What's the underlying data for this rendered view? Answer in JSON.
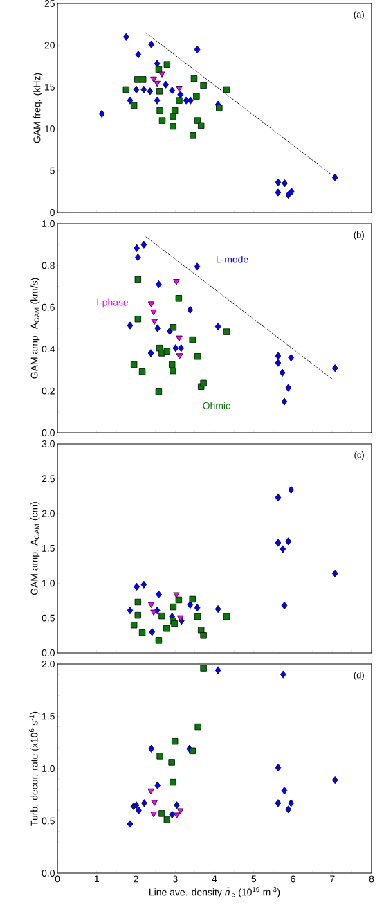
{
  "chart_data": [
    {
      "type": "scatter",
      "ylabel": "GAM freq. (kHz)",
      "annotations": [
        "(a)"
      ],
      "xlim": [
        0,
        8
      ],
      "ylim": [
        0,
        25
      ],
      "tick_labels": "y",
      "xticks": [
        0,
        {
          "value": 0.5,
          "label": null
        },
        1,
        {
          "value": 1.5,
          "label": null
        },
        2,
        {
          "value": 2.5,
          "label": null
        },
        3,
        {
          "value": 3.5,
          "label": null
        },
        4,
        {
          "value": 4.5,
          "label": null
        },
        5,
        {
          "value": 5.5,
          "label": null
        },
        6,
        {
          "value": 6.5,
          "label": null
        },
        7,
        {
          "value": 7.5,
          "label": null
        },
        8
      ],
      "yticks": [
        0,
        5,
        10,
        15,
        20,
        25
      ],
      "series": [
        {
          "color": "#0000ff",
          "marker": "diamond",
          "x": [
            1.75,
            1.13,
            2.39,
            2.06,
            3.56,
            2.54,
            1.85,
            2.01,
            2.2,
            2.36,
            2.54,
            2.76,
            2.92,
            3.13,
            3.28,
            3.39,
            4.09,
            5.62,
            5.79,
            5.62,
            5.88,
            5.96,
            7.07
          ],
          "values": [
            21.0,
            11.8,
            20.1,
            18.9,
            19.5,
            17.8,
            13.4,
            14.7,
            14.7,
            14.5,
            13.4,
            15.3,
            14.6,
            14.1,
            13.4,
            13.4,
            12.9,
            3.6,
            3.5,
            2.4,
            2.1,
            2.5,
            4.2
          ]
        },
        {
          "color": "#0a780a",
          "marker": "square",
          "x": [
            1.75,
            1.95,
            2.04,
            2.18,
            2.58,
            2.79,
            2.6,
            2.61,
            2.67,
            2.99,
            2.94,
            2.94,
            3.1,
            3.48,
            3.72,
            3.54,
            3.57,
            3.66,
            3.45,
            4.12,
            4.31
          ],
          "values": [
            14.7,
            12.8,
            15.9,
            15.9,
            17.1,
            17.7,
            14.5,
            12.2,
            11.0,
            12.2,
            10.3,
            11.5,
            13.4,
            16.0,
            15.2,
            13.9,
            11.0,
            10.4,
            9.2,
            12.5,
            14.7
          ]
        },
        {
          "color": "#ff00ff",
          "marker": "triangle",
          "x": [
            2.45,
            2.66,
            3.1,
            2.54
          ],
          "values": [
            16.0,
            16.6,
            14.9,
            15.5
          ]
        },
        {
          "type": "line",
          "color": "#000000",
          "line_style": "dashed",
          "marker": "none",
          "x": [
            2.25,
            6.96
          ],
          "values": [
            21.5,
            4.6
          ]
        }
      ]
    },
    {
      "type": "scatter",
      "ylabel": "GAM amp. A$_{GAM}$ (km/s)",
      "annotations": [
        "(b)"
      ],
      "xlim": [
        0,
        8
      ],
      "ylim": [
        0,
        1.0
      ],
      "tick_labels": "y",
      "xticks": [
        0,
        {
          "value": 0.5,
          "label": null
        },
        1,
        {
          "value": 1.5,
          "label": null
        },
        2,
        {
          "value": 2.5,
          "label": null
        },
        3,
        {
          "value": 3.5,
          "label": null
        },
        4,
        {
          "value": 4.5,
          "label": null
        },
        5,
        {
          "value": 5.5,
          "label": null
        },
        6,
        {
          "value": 6.5,
          "label": null
        },
        7,
        {
          "value": 7.5,
          "label": null
        },
        8
      ],
      "yticks": [
        {
          "value": 0,
          "label": "0.0"
        },
        {
          "value": 0.1,
          "label": null
        },
        {
          "value": 0.2,
          "label": "0.2"
        },
        {
          "value": 0.3,
          "label": null
        },
        {
          "value": 0.4,
          "label": "0.4"
        },
        {
          "value": 0.5,
          "label": null
        },
        {
          "value": 0.6,
          "label": "0.6"
        },
        {
          "value": 0.7,
          "label": null
        },
        {
          "value": 0.8,
          "label": "0.8"
        },
        {
          "value": 0.9,
          "label": null
        },
        {
          "value": 1.0,
          "label": "1.0"
        }
      ],
      "series": [
        {
          "name": "L-mode",
          "color": "#0000ff",
          "marker": "diamond",
          "x": [
            2.2,
            2.02,
            2.05,
            3.56,
            2.58,
            3.38,
            1.85,
            2.55,
            2.86,
            4.09,
            2.38,
            3.01,
            3.15,
            5.62,
            5.62,
            5.95,
            5.73,
            5.88,
            5.78,
            7.07
          ],
          "values": [
            0.9,
            0.883,
            0.839,
            0.795,
            0.71,
            0.588,
            0.513,
            0.5,
            0.486,
            0.508,
            0.381,
            0.405,
            0.405,
            0.368,
            0.334,
            0.359,
            0.287,
            0.215,
            0.149,
            0.309
          ]
        },
        {
          "name": "Ohmic",
          "color": "#0a780a",
          "marker": "square",
          "x": [
            2.05,
            2.05,
            3.09,
            2.95,
            4.31,
            3.44,
            2.6,
            2.66,
            2.79,
            3.57,
            1.95,
            2.16,
            2.92,
            2.94,
            3.66,
            3.72,
            2.58
          ],
          "values": [
            0.734,
            0.544,
            0.643,
            0.504,
            0.483,
            0.445,
            0.405,
            0.381,
            0.39,
            0.365,
            0.326,
            0.292,
            0.326,
            0.296,
            0.221,
            0.237,
            0.196
          ]
        },
        {
          "name": "I-phase",
          "color": "#ff00ff",
          "marker": "triangle",
          "x": [
            3.03,
            2.39,
            2.45,
            2.47,
            3.1,
            3.11
          ],
          "values": [
            0.725,
            0.618,
            0.58,
            0.535,
            0.455,
            0.37
          ]
        },
        {
          "type": "line",
          "color": "#000000",
          "line_style": "dashed",
          "marker": "none",
          "x": [
            2.25,
            7.04
          ],
          "values": [
            0.938,
            0.251
          ]
        }
      ]
    },
    {
      "type": "scatter",
      "ylabel": "GAM amp. A$_{GAM}$ (cm)",
      "annotations": [
        "(c)"
      ],
      "xlim": [
        0,
        8
      ],
      "ylim": [
        0,
        3.0
      ],
      "tick_labels": "y",
      "xticks": [
        0,
        {
          "value": 0.5,
          "label": null
        },
        1,
        {
          "value": 1.5,
          "label": null
        },
        2,
        {
          "value": 2.5,
          "label": null
        },
        3,
        {
          "value": 3.5,
          "label": null
        },
        4,
        {
          "value": 4.5,
          "label": null
        },
        5,
        {
          "value": 5.5,
          "label": null
        },
        6,
        {
          "value": 6.5,
          "label": null
        },
        7,
        {
          "value": 7.5,
          "label": null
        },
        8
      ],
      "yticks": [
        {
          "value": 0,
          "label": "0.0"
        },
        {
          "value": 0.5,
          "label": "0.5"
        },
        {
          "value": 1.0,
          "label": "1.0"
        },
        {
          "value": 1.5,
          "label": "1.5"
        },
        {
          "value": 2.0,
          "label": "2.0"
        },
        {
          "value": 2.5,
          "label": "2.5"
        },
        {
          "value": 3.0,
          "label": "3.0"
        }
      ],
      "series": [
        {
          "color": "#0000ff",
          "marker": "diamond",
          "x": [
            5.62,
            5.95,
            5.62,
            5.88,
            5.74,
            7.07,
            5.78,
            2.02,
            2.2,
            2.58,
            1.85,
            3.38,
            3.56,
            4.09,
            2.54,
            2.92,
            3.16,
            2.41
          ],
          "values": [
            2.23,
            2.34,
            1.58,
            1.6,
            1.49,
            1.14,
            0.68,
            0.95,
            0.98,
            0.84,
            0.61,
            0.69,
            0.65,
            0.63,
            0.61,
            0.52,
            0.46,
            0.3
          ]
        },
        {
          "color": "#0a780a",
          "marker": "square",
          "x": [
            2.05,
            2.05,
            1.95,
            2.16,
            2.58,
            2.66,
            2.78,
            2.95,
            3.09,
            2.94,
            2.98,
            3.44,
            3.57,
            3.66,
            3.72,
            4.31
          ],
          "values": [
            0.73,
            0.54,
            0.4,
            0.29,
            0.18,
            0.53,
            0.35,
            0.66,
            0.76,
            0.46,
            0.42,
            0.77,
            0.52,
            0.33,
            0.25,
            0.52
          ]
        },
        {
          "color": "#ff00ff",
          "marker": "triangle",
          "x": [
            3.03,
            2.39,
            2.45,
            3.13
          ],
          "values": [
            0.84,
            0.7,
            0.59,
            0.51
          ]
        }
      ]
    },
    {
      "type": "scatter",
      "ylabel": "Turb. decor. rate (x10$^{6}$ s$^{-1}$)",
      "xlabel": "Line ave. density *n̄*$_{e}$ (10$^{19}$ m$^{-3}$)",
      "annotations": [
        "(d)"
      ],
      "xlim": [
        0,
        8
      ],
      "ylim": [
        0,
        2.0
      ],
      "xticks": [
        0,
        {
          "value": 0.5,
          "label": null
        },
        1,
        {
          "value": 1.5,
          "label": null
        },
        2,
        {
          "value": 2.5,
          "label": null
        },
        3,
        {
          "value": 3.5,
          "label": null
        },
        4,
        {
          "value": 4.5,
          "label": null
        },
        5,
        {
          "value": 5.5,
          "label": null
        },
        6,
        {
          "value": 6.5,
          "label": null
        },
        7,
        {
          "value": 7.5,
          "label": null
        },
        8
      ],
      "yticks": [
        {
          "value": 0,
          "label": "0.0"
        },
        {
          "value": 0.1,
          "label": null
        },
        {
          "value": 0.2,
          "label": null
        },
        {
          "value": 0.3,
          "label": null
        },
        {
          "value": 0.4,
          "label": null
        },
        {
          "value": 0.5,
          "label": "0.5"
        },
        {
          "value": 0.6,
          "label": null
        },
        {
          "value": 0.7,
          "label": null
        },
        {
          "value": 0.8,
          "label": null
        },
        {
          "value": 0.9,
          "label": null
        },
        {
          "value": 1.0,
          "label": "1.0"
        },
        {
          "value": 1.1,
          "label": null
        },
        {
          "value": 1.2,
          "label": null
        },
        {
          "value": 1.3,
          "label": null
        },
        {
          "value": 1.4,
          "label": null
        },
        {
          "value": 1.5,
          "label": "1.5"
        },
        {
          "value": 1.6,
          "label": null
        },
        {
          "value": 1.7,
          "label": null
        },
        {
          "value": 1.8,
          "label": null
        },
        {
          "value": 1.9,
          "label": null
        },
        {
          "value": 2.0,
          "label": "2.0"
        }
      ],
      "series": [
        {
          "color": "#0000ff",
          "marker": "diamond",
          "x": [
            4.09,
            5.75,
            2.39,
            3.36,
            2.55,
            5.62,
            7.07,
            5.78,
            5.62,
            5.95,
            5.88,
            1.94,
            2.07,
            2.21,
            3.04,
            2.92,
            1.85,
            2.01
          ],
          "values": [
            1.94,
            1.9,
            1.19,
            1.19,
            0.84,
            1.01,
            0.89,
            0.79,
            0.67,
            0.67,
            0.61,
            0.64,
            0.6,
            0.67,
            0.65,
            0.56,
            0.47,
            0.65
          ]
        },
        {
          "color": "#0a780a",
          "marker": "square",
          "x": [
            3.72,
            3.58,
            2.99,
            3.44,
            2.61,
            2.91,
            2.94,
            2.66,
            2.79
          ],
          "values": [
            1.96,
            1.4,
            1.26,
            1.17,
            1.12,
            1.06,
            0.87,
            0.57,
            0.51
          ]
        },
        {
          "color": "#ff00ff",
          "marker": "triangle",
          "x": [
            2.38,
            2.47,
            2.45,
            3.13,
            3.04
          ],
          "values": [
            0.79,
            0.68,
            0.57,
            0.6,
            0.56
          ]
        }
      ]
    }
  ]
}
